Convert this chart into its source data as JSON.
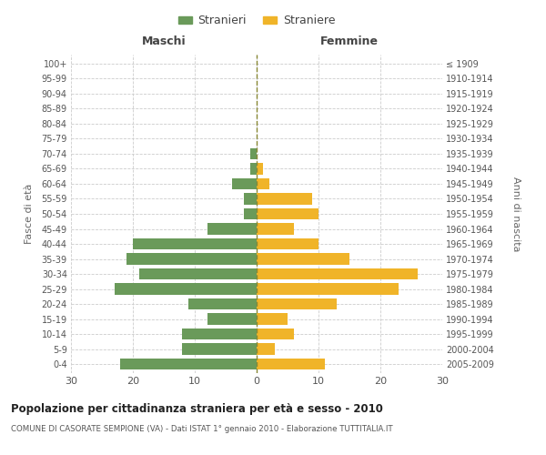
{
  "age_groups": [
    "0-4",
    "5-9",
    "10-14",
    "15-19",
    "20-24",
    "25-29",
    "30-34",
    "35-39",
    "40-44",
    "45-49",
    "50-54",
    "55-59",
    "60-64",
    "65-69",
    "70-74",
    "75-79",
    "80-84",
    "85-89",
    "90-94",
    "95-99",
    "100+"
  ],
  "birth_years": [
    "2005-2009",
    "2000-2004",
    "1995-1999",
    "1990-1994",
    "1985-1989",
    "1980-1984",
    "1975-1979",
    "1970-1974",
    "1965-1969",
    "1960-1964",
    "1955-1959",
    "1950-1954",
    "1945-1949",
    "1940-1944",
    "1935-1939",
    "1930-1934",
    "1925-1929",
    "1920-1924",
    "1915-1919",
    "1910-1914",
    "≤ 1909"
  ],
  "males": [
    22,
    12,
    12,
    8,
    11,
    23,
    19,
    21,
    20,
    8,
    2,
    2,
    4,
    1,
    1,
    0,
    0,
    0,
    0,
    0,
    0
  ],
  "females": [
    11,
    3,
    6,
    5,
    13,
    23,
    26,
    15,
    10,
    6,
    10,
    9,
    2,
    1,
    0,
    0,
    0,
    0,
    0,
    0,
    0
  ],
  "male_color": "#6a9a5a",
  "female_color": "#f0b429",
  "title": "Popolazione per cittadinanza straniera per età e sesso - 2010",
  "subtitle": "COMUNE DI CASORATE SEMPIONE (VA) - Dati ISTAT 1° gennaio 2010 - Elaborazione TUTTITALIA.IT",
  "ylabel_left": "Fasce di età",
  "ylabel_right": "Anni di nascita",
  "header_left": "Maschi",
  "header_right": "Femmine",
  "legend_male": "Stranieri",
  "legend_female": "Straniere",
  "xlim": 30,
  "bg_color": "#ffffff",
  "grid_color": "#cccccc",
  "bar_height": 0.75
}
